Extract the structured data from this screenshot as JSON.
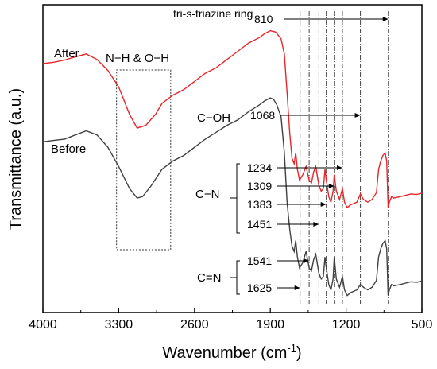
{
  "chart_data": {
    "type": "line",
    "xlabel": "Wavenumber (cm",
    "xlabel_sup": "-1",
    "xlabel_close": ")",
    "ylabel": "Transmittance (a.u.)",
    "xlim": [
      4000,
      500
    ],
    "xticks": [
      4000,
      3300,
      2600,
      1900,
      1200,
      500
    ],
    "x_reversed": true,
    "grid": false,
    "series": [
      {
        "name": "After",
        "color": "#e8262a",
        "points": [
          [
            4000,
            0.805
          ],
          [
            3900,
            0.81
          ],
          [
            3800,
            0.818
          ],
          [
            3700,
            0.83
          ],
          [
            3600,
            0.84
          ],
          [
            3500,
            0.82
          ],
          [
            3400,
            0.78
          ],
          [
            3300,
            0.72
          ],
          [
            3200,
            0.62
          ],
          [
            3130,
            0.57
          ],
          [
            3050,
            0.58
          ],
          [
            2960,
            0.62
          ],
          [
            2900,
            0.66
          ],
          [
            2800,
            0.69
          ],
          [
            2700,
            0.71
          ],
          [
            2600,
            0.74
          ],
          [
            2500,
            0.77
          ],
          [
            2400,
            0.79
          ],
          [
            2300,
            0.82
          ],
          [
            2200,
            0.85
          ],
          [
            2100,
            0.88
          ],
          [
            2000,
            0.9
          ],
          [
            1950,
            0.915
          ],
          [
            1900,
            0.925
          ],
          [
            1850,
            0.92
          ],
          [
            1800,
            0.895
          ],
          [
            1770,
            0.84
          ],
          [
            1745,
            0.7
          ],
          [
            1720,
            0.55
          ],
          [
            1700,
            0.46
          ],
          [
            1680,
            0.44
          ],
          [
            1665,
            0.48
          ],
          [
            1650,
            0.42
          ],
          [
            1630,
            0.38
          ],
          [
            1600,
            0.4
          ],
          [
            1570,
            0.43
          ],
          [
            1541,
            0.38
          ],
          [
            1520,
            0.37
          ],
          [
            1500,
            0.41
          ],
          [
            1480,
            0.43
          ],
          [
            1451,
            0.36
          ],
          [
            1430,
            0.34
          ],
          [
            1410,
            0.35
          ],
          [
            1395,
            0.42
          ],
          [
            1383,
            0.38
          ],
          [
            1360,
            0.32
          ],
          [
            1340,
            0.3
          ],
          [
            1320,
            0.34
          ],
          [
            1309,
            0.4
          ],
          [
            1290,
            0.34
          ],
          [
            1260,
            0.31
          ],
          [
            1234,
            0.35
          ],
          [
            1215,
            0.3
          ],
          [
            1190,
            0.28
          ],
          [
            1160,
            0.29
          ],
          [
            1100,
            0.3
          ],
          [
            1068,
            0.33
          ],
          [
            1040,
            0.31
          ],
          [
            1000,
            0.3
          ],
          [
            960,
            0.31
          ],
          [
            920,
            0.335
          ],
          [
            900,
            0.42
          ],
          [
            880,
            0.45
          ],
          [
            860,
            0.47
          ],
          [
            840,
            0.48
          ],
          [
            825,
            0.45
          ],
          [
            812,
            0.28
          ],
          [
            800,
            0.3
          ],
          [
            780,
            0.32
          ],
          [
            760,
            0.315
          ],
          [
            700,
            0.32
          ],
          [
            650,
            0.325
          ],
          [
            600,
            0.33
          ],
          [
            550,
            0.328
          ],
          [
            500,
            0.333
          ]
        ]
      },
      {
        "name": "Before",
        "color": "#404040",
        "points": [
          [
            4000,
            0.52
          ],
          [
            3900,
            0.525
          ],
          [
            3800,
            0.53
          ],
          [
            3700,
            0.545
          ],
          [
            3600,
            0.56
          ],
          [
            3500,
            0.545
          ],
          [
            3400,
            0.5
          ],
          [
            3300,
            0.43
          ],
          [
            3200,
            0.35
          ],
          [
            3130,
            0.315
          ],
          [
            3080,
            0.32
          ],
          [
            3000,
            0.36
          ],
          [
            2900,
            0.42
          ],
          [
            2800,
            0.45
          ],
          [
            2700,
            0.47
          ],
          [
            2600,
            0.5
          ],
          [
            2500,
            0.53
          ],
          [
            2400,
            0.555
          ],
          [
            2300,
            0.58
          ],
          [
            2200,
            0.6
          ],
          [
            2100,
            0.63
          ],
          [
            2000,
            0.655
          ],
          [
            1950,
            0.67
          ],
          [
            1900,
            0.68
          ],
          [
            1870,
            0.675
          ],
          [
            1840,
            0.655
          ],
          [
            1800,
            0.61
          ],
          [
            1770,
            0.48
          ],
          [
            1745,
            0.3
          ],
          [
            1720,
            0.2
          ],
          [
            1700,
            0.14
          ],
          [
            1680,
            0.12
          ],
          [
            1665,
            0.16
          ],
          [
            1650,
            0.1
          ],
          [
            1630,
            0.06
          ],
          [
            1600,
            0.08
          ],
          [
            1570,
            0.12
          ],
          [
            1541,
            0.06
          ],
          [
            1520,
            0.05
          ],
          [
            1500,
            0.09
          ],
          [
            1480,
            0.11
          ],
          [
            1451,
            0.04
          ],
          [
            1430,
            0.02
          ],
          [
            1410,
            0.03
          ],
          [
            1395,
            0.1
          ],
          [
            1383,
            0.06
          ],
          [
            1360,
            0.0
          ],
          [
            1340,
            -0.02
          ],
          [
            1320,
            0.02
          ],
          [
            1309,
            0.1
          ],
          [
            1290,
            0.02
          ],
          [
            1260,
            -0.01
          ],
          [
            1234,
            0.03
          ],
          [
            1215,
            -0.02
          ],
          [
            1190,
            -0.04
          ],
          [
            1160,
            -0.03
          ],
          [
            1100,
            -0.02
          ],
          [
            1068,
            0.0
          ],
          [
            1040,
            -0.01
          ],
          [
            1000,
            -0.02
          ],
          [
            960,
            -0.01
          ],
          [
            920,
            0.015
          ],
          [
            900,
            0.1
          ],
          [
            880,
            0.13
          ],
          [
            860,
            0.15
          ],
          [
            840,
            0.16
          ],
          [
            825,
            0.13
          ],
          [
            812,
            -0.04
          ],
          [
            800,
            -0.02
          ],
          [
            780,
            0.0
          ],
          [
            760,
            -0.005
          ],
          [
            700,
            0.0
          ],
          [
            650,
            0.005
          ],
          [
            600,
            0.01
          ],
          [
            550,
            0.008
          ],
          [
            500,
            0.013
          ]
        ]
      }
    ],
    "series_labels": [
      {
        "text": "After"
      },
      {
        "text": "Before"
      }
    ],
    "annotations": {
      "box_label": "N−H & O−H",
      "box_x": [
        3320,
        2820
      ],
      "triazine_label": "tri-s-triazine ring",
      "co_label": "C−OH",
      "cn_label": "C−N",
      "ceq_label": "C=N",
      "peaks": [
        {
          "value": 810,
          "label": "810"
        },
        {
          "value": 1068,
          "label": "1068"
        },
        {
          "value": 1234,
          "label": "1234"
        },
        {
          "value": 1309,
          "label": "1309"
        },
        {
          "value": 1383,
          "label": "1383"
        },
        {
          "value": 1451,
          "label": "1451"
        },
        {
          "value": 1541,
          "label": "1541"
        },
        {
          "value": 1625,
          "label": "1625"
        }
      ]
    }
  }
}
